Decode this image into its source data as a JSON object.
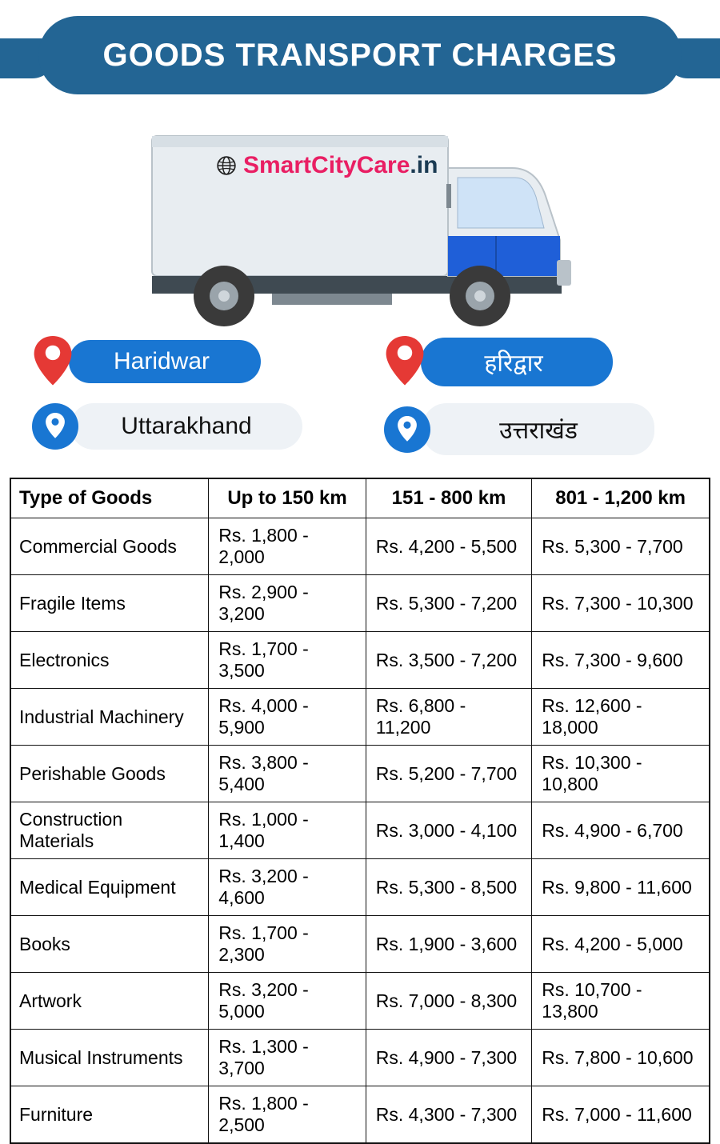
{
  "header": {
    "title": "GOODS TRANSPORT CHARGES",
    "bg_color": "#236594",
    "text_color": "#ffffff"
  },
  "logo": {
    "brand_primary": "SmartCityCare",
    "brand_suffix": ".in",
    "primary_color": "#e91e63",
    "suffix_color": "#1a3a52"
  },
  "locations": {
    "city_en": "Haridwar",
    "city_hi": "हरिद्वार",
    "state_en": "Uttarakhand",
    "state_hi": "उत्तराखंड",
    "pill_blue_bg": "#1976d2",
    "pill_grey_bg": "#eef2f6",
    "pin_red": "#e53935"
  },
  "table": {
    "columns": [
      "Type of Goods",
      "Up to 150 km",
      "151 - 800 km",
      "801 - 1,200 km"
    ],
    "rows": [
      [
        "Commercial Goods",
        "Rs. 1,800 - 2,000",
        "Rs. 4,200 - 5,500",
        "Rs. 5,300 - 7,700"
      ],
      [
        "Fragile Items",
        "Rs. 2,900 - 3,200",
        "Rs. 5,300 - 7,200",
        "Rs. 7,300 - 10,300"
      ],
      [
        "Electronics",
        "Rs. 1,700 - 3,500",
        "Rs. 3,500 - 7,200",
        "Rs. 7,300 - 9,600"
      ],
      [
        "Industrial Machinery",
        "Rs. 4,000 - 5,900",
        "Rs. 6,800 - 11,200",
        "Rs. 12,600 - 18,000"
      ],
      [
        "Perishable Goods",
        "Rs. 3,800 - 5,400",
        "Rs. 5,200 - 7,700",
        "Rs. 10,300 - 10,800"
      ],
      [
        "Construction Materials",
        "Rs. 1,000 - 1,400",
        "Rs. 3,000 - 4,100",
        "Rs. 4,900 - 6,700"
      ],
      [
        "Medical Equipment",
        "Rs. 3,200 - 4,600",
        "Rs. 5,300 - 8,500",
        "Rs. 9,800 - 11,600"
      ],
      [
        "Books",
        "Rs. 1,700 - 2,300",
        "Rs. 1,900 - 3,600",
        "Rs. 4,200 - 5,000"
      ],
      [
        "Artwork",
        "Rs. 3,200 - 5,000",
        "Rs. 7,000 - 8,300",
        "Rs. 10,700 - 13,800"
      ],
      [
        "Musical Instruments",
        "Rs. 1,300 - 3,700",
        "Rs. 4,900 - 7,300",
        "Rs. 7,800 - 10,600"
      ],
      [
        "Furniture",
        "Rs. 1,800 - 2,500",
        "Rs. 4,300 - 7,300",
        "Rs. 7,000 - 11,600"
      ]
    ],
    "border_color": "#111111",
    "header_fontsize": 24,
    "cell_fontsize": 23
  },
  "truck_colors": {
    "body": "#e8edf1",
    "body_stroke": "#b9c2c9",
    "cab_accent": "#1f5fd8",
    "cab_glass": "#cfe3f7",
    "wheel_dark": "#3a3a3a",
    "wheel_hub": "#9aa4ab"
  }
}
